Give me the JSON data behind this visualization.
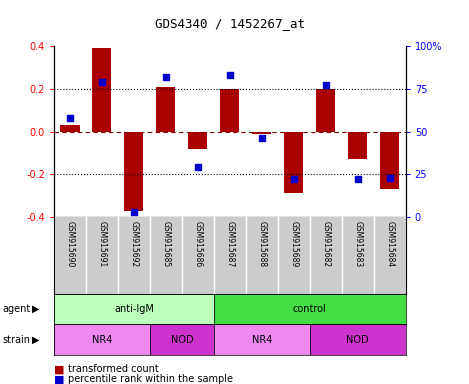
{
  "title": "GDS4340 / 1452267_at",
  "samples": [
    "GSM915690",
    "GSM915691",
    "GSM915692",
    "GSM915685",
    "GSM915686",
    "GSM915687",
    "GSM915688",
    "GSM915689",
    "GSM915682",
    "GSM915683",
    "GSM915684"
  ],
  "bar_values": [
    0.03,
    0.39,
    -0.37,
    0.21,
    -0.08,
    0.2,
    -0.01,
    -0.29,
    0.2,
    -0.13,
    -0.27
  ],
  "percentile_values": [
    58,
    79,
    3,
    82,
    29,
    83,
    46,
    22,
    77,
    22,
    23
  ],
  "bar_color": "#aa0000",
  "dot_color": "#0000cc",
  "ylim": [
    -0.4,
    0.4
  ],
  "y2lim": [
    0,
    100
  ],
  "yticks": [
    -0.4,
    -0.2,
    0.0,
    0.2,
    0.4
  ],
  "y2ticks": [
    0,
    25,
    50,
    75,
    100
  ],
  "y2ticklabels": [
    "0",
    "25",
    "50",
    "75",
    "100%"
  ],
  "agent_groups": [
    {
      "label": "anti-IgM",
      "start": 0,
      "end": 5,
      "color": "#bbffbb"
    },
    {
      "label": "control",
      "start": 5,
      "end": 11,
      "color": "#44dd44"
    }
  ],
  "strain_groups": [
    {
      "label": "NR4",
      "start": 0,
      "end": 3,
      "color": "#ee88ee"
    },
    {
      "label": "NOD",
      "start": 3,
      "end": 5,
      "color": "#cc33cc"
    },
    {
      "label": "NR4",
      "start": 5,
      "end": 8,
      "color": "#ee88ee"
    },
    {
      "label": "NOD",
      "start": 8,
      "end": 11,
      "color": "#cc33cc"
    }
  ],
  "legend_bar_label": "transformed count",
  "legend_dot_label": "percentile rank within the sample",
  "agent_label": "agent",
  "strain_label": "strain",
  "background_color": "#ffffff",
  "bar_width": 0.6,
  "dot_size": 18
}
